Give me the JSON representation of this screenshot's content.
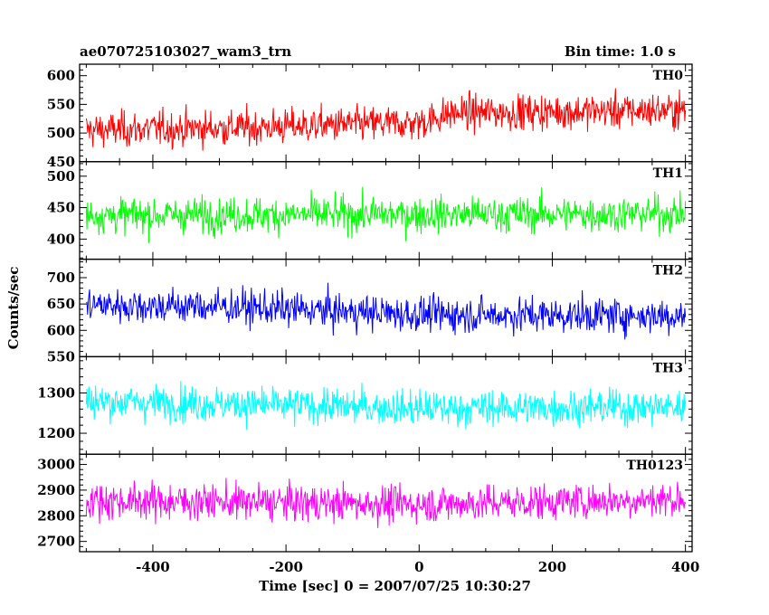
{
  "header": {
    "title": "ae070725103027_wam3_trn",
    "bin_time": "Bin time: 1.0 s"
  },
  "chart_data": {
    "type": "line",
    "xlabel": "Time [sec] 0 = 2007/07/25 10:30:27",
    "ylabel": "Counts/sec",
    "xlim": [
      -510,
      410
    ],
    "x_range": [
      -500,
      400
    ],
    "bin_time": 1.0,
    "x_ticks": [
      -400,
      -200,
      0,
      200,
      400
    ],
    "panels": [
      {
        "name": "TH0",
        "color": "#ff0000",
        "ylim": [
          450,
          620
        ],
        "y_ticks": [
          450,
          500,
          550,
          600
        ],
        "mean_trend": [
          [
            -500,
            505
          ],
          [
            -250,
            510
          ],
          [
            0,
            518
          ],
          [
            50,
            535
          ],
          [
            400,
            540
          ]
        ],
        "noise_amplitude": 35
      },
      {
        "name": "TH1",
        "color": "#00ff00",
        "ylim": [
          368,
          523
        ],
        "y_ticks": [
          400,
          450,
          500
        ],
        "mean_trend": [
          [
            -500,
            438
          ],
          [
            400,
            440
          ]
        ],
        "noise_amplitude": 32
      },
      {
        "name": "TH2",
        "color": "#0000ff",
        "ylim": [
          550,
          735
        ],
        "y_ticks": [
          550,
          600,
          650,
          700
        ],
        "mean_trend": [
          [
            -500,
            648
          ],
          [
            -300,
            645
          ],
          [
            0,
            630
          ],
          [
            400,
            628
          ]
        ],
        "noise_amplitude": 38
      },
      {
        "name": "TH3",
        "color": "#00ffff",
        "ylim": [
          1148,
          1390
        ],
        "y_ticks": [
          1200,
          1300
        ],
        "mean_trend": [
          [
            -500,
            1280
          ],
          [
            0,
            1262
          ],
          [
            400,
            1265
          ]
        ],
        "noise_amplitude": 50
      },
      {
        "name": "TH0123",
        "color": "#ff00ff",
        "ylim": [
          2660,
          3040
        ],
        "y_ticks": [
          2700,
          2800,
          2900,
          3000
        ],
        "mean_trend": [
          [
            -500,
            2860
          ],
          [
            0,
            2845
          ],
          [
            400,
            2865
          ]
        ],
        "noise_amplitude": 80
      }
    ]
  }
}
